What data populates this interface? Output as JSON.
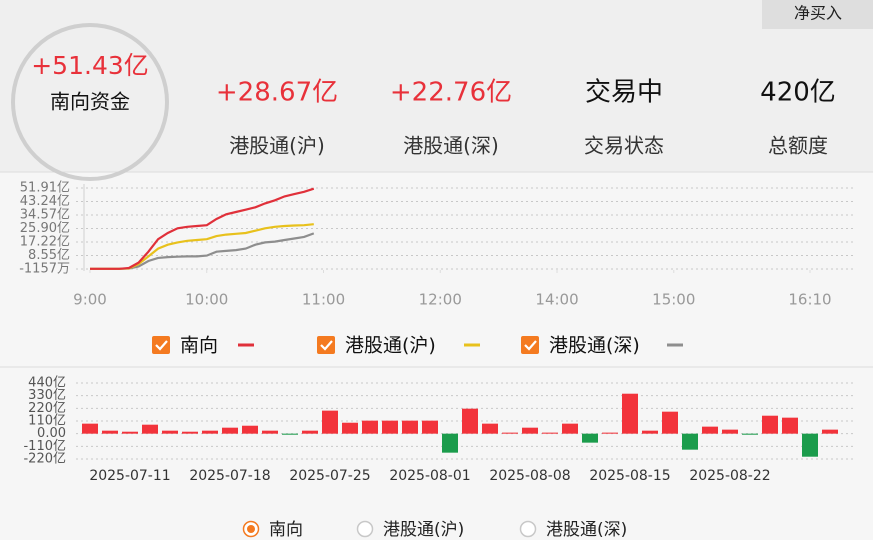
{
  "button": "净买入",
  "summary": {
    "value": "+51.43亿",
    "label": "南向资金",
    "color": "#e8313a"
  },
  "stats": [
    {
      "value": "+28.67亿",
      "label": "港股通(沪)",
      "color": "#e8313a"
    },
    {
      "value": "+22.76亿",
      "label": "港股通(深)",
      "color": "#e8313a"
    },
    {
      "value": "交易中",
      "label": "交易状态",
      "color": "#111111"
    },
    {
      "value": "420亿",
      "label": "总额度",
      "color": "#111111"
    }
  ],
  "chart_data": [
    {
      "type": "line",
      "x": [
        0,
        5,
        10,
        15,
        20,
        25,
        30,
        35,
        40,
        45,
        50,
        55,
        60,
        65,
        70,
        75,
        80,
        85,
        90,
        95,
        100,
        105,
        110,
        115
      ],
      "xlim": [
        0,
        370
      ],
      "xticks": [
        {
          "value": 0,
          "label": "9:00"
        },
        {
          "value": 60,
          "label": "10:00"
        },
        {
          "value": 120,
          "label": "11:00"
        },
        {
          "value": 180,
          "label": "12:00"
        },
        {
          "value": 240,
          "label": "14:00"
        },
        {
          "value": 300,
          "label": "15:00"
        },
        {
          "value": 370,
          "label": "16:10"
        }
      ],
      "ylim": [
        -0.1157,
        51.91
      ],
      "yticks": [
        {
          "value": 51.91,
          "label": "51.91亿"
        },
        {
          "value": 43.24,
          "label": "43.24亿"
        },
        {
          "value": 34.57,
          "label": "34.57亿"
        },
        {
          "value": 25.9,
          "label": "25.90亿"
        },
        {
          "value": 17.22,
          "label": "17.22亿"
        },
        {
          "value": 8.55,
          "label": "8.55亿"
        },
        {
          "value": -0.1157,
          "label": "-1157万"
        }
      ],
      "grid": true,
      "legend_check_color": "#f47a20",
      "series": [
        {
          "name": "南向",
          "color": "#e0303a",
          "values": [
            0,
            0,
            0,
            0,
            0.5,
            4,
            11,
            19,
            23,
            26,
            27,
            27.5,
            28,
            32,
            35,
            36.5,
            38,
            39.5,
            42,
            44,
            46.5,
            48,
            49.5,
            51.43
          ]
        },
        {
          "name": "港股通(沪)",
          "color": "#e8c11c",
          "values": [
            0,
            0,
            0,
            0,
            0.3,
            3,
            8,
            13,
            15.5,
            17,
            18,
            18.5,
            19,
            21,
            22,
            22.5,
            23,
            24.5,
            26,
            27,
            27.5,
            27.8,
            28,
            28.67
          ]
        },
        {
          "name": "港股通(深)",
          "color": "#8e8e8e",
          "values": [
            0,
            0,
            0,
            0,
            0.2,
            1.5,
            5,
            7,
            7.5,
            7.8,
            8,
            8,
            8.5,
            11,
            11.5,
            12,
            13,
            15.5,
            17,
            17.5,
            18.5,
            19.5,
            20.5,
            22.76
          ]
        }
      ]
    },
    {
      "type": "bar",
      "categories": [
        null,
        null,
        "2025-07-11",
        null,
        null,
        null,
        null,
        "2025-07-18",
        null,
        null,
        null,
        null,
        "2025-07-25",
        null,
        null,
        null,
        null,
        "2025-08-01",
        null,
        null,
        null,
        null,
        "2025-08-08",
        null,
        null,
        null,
        null,
        "2025-08-15",
        null,
        null,
        null,
        null,
        "2025-08-22",
        null,
        null,
        null,
        null,
        null
      ],
      "values": [
        87,
        26,
        17,
        78,
        26,
        17,
        26,
        52,
        69,
        26,
        -9,
        26,
        200,
        95,
        113,
        113,
        113,
        113,
        -165,
        217,
        87,
        9,
        52,
        9,
        87,
        -78,
        9,
        347,
        26,
        191,
        -139,
        61,
        35,
        -9,
        156,
        139,
        -200,
        35
      ],
      "positive_color": "#f2333b",
      "negative_color": "#1b9c4c",
      "ylim": [
        -220,
        440
      ],
      "yticks": [
        {
          "value": 440,
          "label": "440亿"
        },
        {
          "value": 330,
          "label": "330亿"
        },
        {
          "value": 220,
          "label": "220亿"
        },
        {
          "value": 110,
          "label": "110亿"
        },
        {
          "value": 0,
          "label": "0.00"
        },
        {
          "value": -110,
          "label": "-110亿"
        },
        {
          "value": -220,
          "label": "-220亿"
        }
      ],
      "grid": true,
      "options": [
        "南向",
        "港股通(沪)",
        "港股通(深)"
      ],
      "selected": 0,
      "option_color": "#f47a20"
    }
  ]
}
